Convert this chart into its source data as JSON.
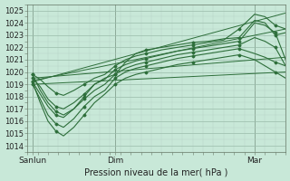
{
  "xlabel": "Pression niveau de la mer( hPa )",
  "ylim": [
    1013.5,
    1025.5
  ],
  "xlim": [
    0,
    100
  ],
  "xtick_positions": [
    2,
    34,
    88
  ],
  "xtick_labels": [
    "Sanlun",
    "Dim",
    "Mar"
  ],
  "ytick_positions": [
    1014,
    1015,
    1016,
    1017,
    1018,
    1019,
    1020,
    1021,
    1022,
    1023,
    1024,
    1025
  ],
  "bg_color": "#c8e8d8",
  "grid_major_color": "#99bbaa",
  "grid_minor_color": "#b5d4c5",
  "line_color": "#2d6e3a",
  "figsize": [
    3.2,
    2.0
  ],
  "dpi": 100,
  "straight_lines": [
    {
      "x": [
        2,
        100
      ],
      "y": [
        1019.5,
        1021.2
      ]
    },
    {
      "x": [
        2,
        100
      ],
      "y": [
        1019.3,
        1023.5
      ]
    },
    {
      "x": [
        2,
        100
      ],
      "y": [
        1019.2,
        1024.8
      ]
    },
    {
      "x": [
        2,
        100
      ],
      "y": [
        1019.0,
        1020.0
      ]
    }
  ],
  "curved_lines": [
    {
      "x": [
        2,
        5,
        8,
        11,
        14,
        18,
        22,
        26,
        30,
        34,
        38,
        42,
        46,
        52,
        58,
        64,
        70,
        76,
        82,
        88,
        92,
        96,
        100
      ],
      "y": [
        1019.8,
        1019.4,
        1018.8,
        1018.3,
        1018.1,
        1018.5,
        1019.0,
        1019.5,
        1019.8,
        1020.5,
        1021.0,
        1021.3,
        1021.5,
        1021.8,
        1022.0,
        1022.2,
        1022.4,
        1022.6,
        1023.5,
        1024.7,
        1024.5,
        1023.8,
        1023.5
      ]
    },
    {
      "x": [
        2,
        5,
        8,
        11,
        14,
        18,
        22,
        26,
        30,
        34,
        38,
        42,
        46,
        52,
        58,
        64,
        70,
        76,
        82,
        88,
        92,
        96,
        100
      ],
      "y": [
        1019.5,
        1018.8,
        1017.8,
        1017.2,
        1017.0,
        1017.5,
        1018.2,
        1019.0,
        1019.4,
        1020.2,
        1020.6,
        1020.9,
        1021.1,
        1021.4,
        1021.7,
        1021.9,
        1022.1,
        1022.3,
        1022.5,
        1024.0,
        1023.8,
        1023.2,
        1021.0
      ]
    },
    {
      "x": [
        2,
        5,
        8,
        11,
        14,
        18,
        22,
        26,
        30,
        34,
        38,
        42,
        46,
        52,
        58,
        64,
        70,
        76,
        82,
        88,
        92,
        96,
        100
      ],
      "y": [
        1019.2,
        1018.2,
        1017.2,
        1016.5,
        1016.3,
        1017.0,
        1017.8,
        1018.5,
        1019.0,
        1019.8,
        1020.3,
        1020.6,
        1020.8,
        1021.1,
        1021.4,
        1021.6,
        1021.8,
        1022.0,
        1022.2,
        1022.8,
        1022.5,
        1022.0,
        1020.5
      ]
    },
    {
      "x": [
        2,
        5,
        8,
        11,
        14,
        18,
        22,
        26,
        30,
        34,
        38,
        42,
        46,
        52,
        58,
        64,
        70,
        76,
        82,
        88,
        92,
        96,
        100
      ],
      "y": [
        1019.0,
        1017.8,
        1016.5,
        1015.8,
        1015.5,
        1016.2,
        1017.2,
        1018.0,
        1018.5,
        1019.5,
        1020.0,
        1020.3,
        1020.5,
        1020.8,
        1021.1,
        1021.3,
        1021.5,
        1021.7,
        1021.9,
        1021.5,
        1021.2,
        1020.8,
        1020.5
      ]
    },
    {
      "x": [
        2,
        5,
        8,
        11,
        14,
        18,
        22,
        26,
        30,
        34,
        38,
        42,
        46,
        52,
        58,
        64,
        70,
        76,
        82,
        88,
        92,
        96,
        100
      ],
      "y": [
        1019.2,
        1017.5,
        1016.0,
        1015.2,
        1014.8,
        1015.5,
        1016.5,
        1017.5,
        1018.2,
        1019.0,
        1019.5,
        1019.8,
        1020.0,
        1020.3,
        1020.6,
        1020.8,
        1021.0,
        1021.2,
        1021.4,
        1021.0,
        1020.5,
        1020.0,
        1019.5
      ]
    },
    {
      "x": [
        2,
        5,
        8,
        11,
        14,
        18,
        22,
        26,
        30,
        34,
        38,
        42,
        46,
        52,
        58,
        64,
        70,
        76,
        82,
        88,
        92,
        96,
        100
      ],
      "y": [
        1019.8,
        1018.5,
        1017.5,
        1016.8,
        1016.5,
        1017.0,
        1018.0,
        1019.0,
        1019.5,
        1019.8,
        1020.8,
        1021.5,
        1021.8,
        1022.0,
        1022.2,
        1022.4,
        1022.5,
        1022.7,
        1022.8,
        1024.2,
        1024.0,
        1023.0,
        1023.2
      ]
    }
  ]
}
